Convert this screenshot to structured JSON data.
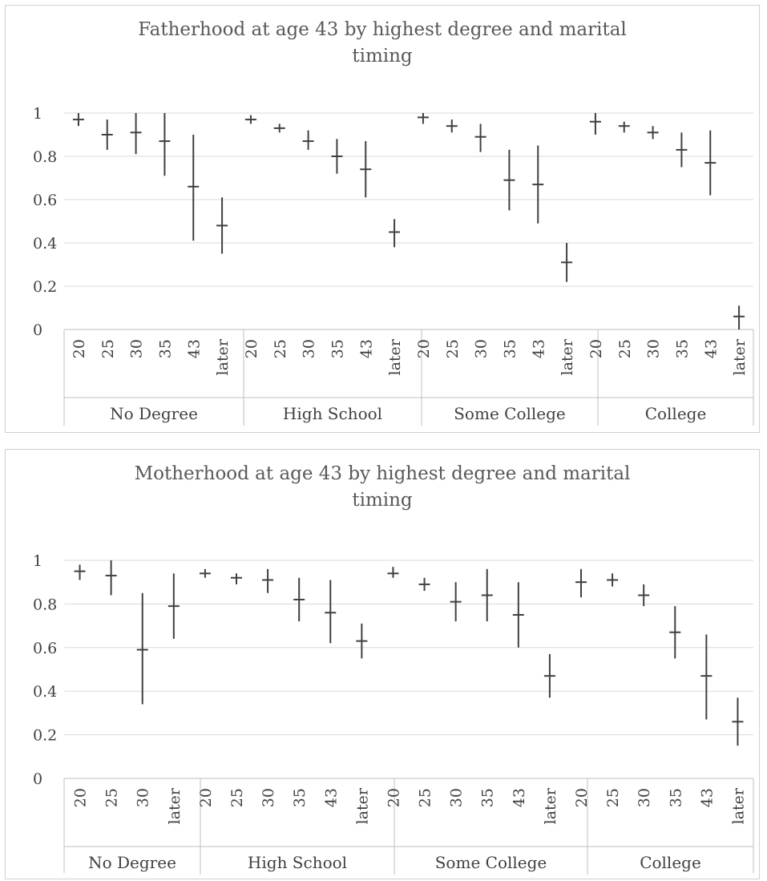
{
  "chart_data": [
    {
      "type": "error-bar",
      "title": "Fatherhood at age 43 by highest degree and marital timing",
      "xlabel": "",
      "ylabel": "",
      "ylim": [
        0,
        1
      ],
      "yticks": [
        "0",
        "0.2",
        "0.4",
        "0.6",
        "0.8",
        "1"
      ],
      "grid": "horizontal",
      "legend": "none",
      "colors": {
        "mark": "#404040",
        "grid": "#d9d9d9",
        "axis": "#bfbfbf",
        "title": "#595959",
        "label": "#404040"
      },
      "groups": [
        {
          "name": "No Degree",
          "points": [
            {
              "x": "20",
              "y": 0.97,
              "low": 0.94,
              "high": 1.0
            },
            {
              "x": "25",
              "y": 0.9,
              "low": 0.83,
              "high": 0.97
            },
            {
              "x": "30",
              "y": 0.91,
              "low": 0.81,
              "high": 1.0
            },
            {
              "x": "35",
              "y": 0.87,
              "low": 0.71,
              "high": 1.0
            },
            {
              "x": "43",
              "y": 0.66,
              "low": 0.41,
              "high": 0.9
            },
            {
              "x": "later",
              "y": 0.48,
              "low": 0.35,
              "high": 0.61
            }
          ]
        },
        {
          "name": "High School",
          "points": [
            {
              "x": "20",
              "y": 0.97,
              "low": 0.95,
              "high": 0.99
            },
            {
              "x": "25",
              "y": 0.93,
              "low": 0.91,
              "high": 0.95
            },
            {
              "x": "30",
              "y": 0.87,
              "low": 0.83,
              "high": 0.92
            },
            {
              "x": "35",
              "y": 0.8,
              "low": 0.72,
              "high": 0.88
            },
            {
              "x": "43",
              "y": 0.74,
              "low": 0.61,
              "high": 0.87
            },
            {
              "x": "later",
              "y": 0.45,
              "low": 0.38,
              "high": 0.51
            }
          ]
        },
        {
          "name": "Some College",
          "points": [
            {
              "x": "20",
              "y": 0.98,
              "low": 0.95,
              "high": 1.0
            },
            {
              "x": "25",
              "y": 0.94,
              "low": 0.91,
              "high": 0.97
            },
            {
              "x": "30",
              "y": 0.89,
              "low": 0.82,
              "high": 0.95
            },
            {
              "x": "35",
              "y": 0.69,
              "low": 0.55,
              "high": 0.83
            },
            {
              "x": "43",
              "y": 0.67,
              "low": 0.49,
              "high": 0.85
            },
            {
              "x": "later",
              "y": 0.31,
              "low": 0.22,
              "high": 0.4
            }
          ]
        },
        {
          "name": "College",
          "points": [
            {
              "x": "20",
              "y": 0.96,
              "low": 0.9,
              "high": 1.0
            },
            {
              "x": "25",
              "y": 0.94,
              "low": 0.91,
              "high": 0.96
            },
            {
              "x": "30",
              "y": 0.91,
              "low": 0.88,
              "high": 0.94
            },
            {
              "x": "35",
              "y": 0.83,
              "low": 0.75,
              "high": 0.91
            },
            {
              "x": "43",
              "y": 0.77,
              "low": 0.62,
              "high": 0.92
            },
            {
              "x": "later",
              "y": 0.06,
              "low": 0.0,
              "high": 0.11
            }
          ]
        }
      ]
    },
    {
      "type": "error-bar",
      "title": "Motherhood at age 43 by highest degree and marital timing",
      "xlabel": "",
      "ylabel": "",
      "ylim": [
        0,
        1
      ],
      "yticks": [
        "0",
        "0.2",
        "0.4",
        "0.6",
        "0.8",
        "1"
      ],
      "grid": "horizontal",
      "legend": "none",
      "colors": {
        "mark": "#404040",
        "grid": "#d9d9d9",
        "axis": "#bfbfbf",
        "title": "#595959",
        "label": "#404040"
      },
      "groups": [
        {
          "name": "No Degree",
          "points": [
            {
              "x": "20",
              "y": 0.95,
              "low": 0.91,
              "high": 0.98
            },
            {
              "x": "25",
              "y": 0.93,
              "low": 0.84,
              "high": 1.0
            },
            {
              "x": "30",
              "y": 0.59,
              "low": 0.34,
              "high": 0.85
            },
            {
              "x": "later",
              "y": 0.79,
              "low": 0.64,
              "high": 0.94
            }
          ]
        },
        {
          "name": "High School",
          "points": [
            {
              "x": "20",
              "y": 0.94,
              "low": 0.92,
              "high": 0.96
            },
            {
              "x": "25",
              "y": 0.92,
              "low": 0.89,
              "high": 0.94
            },
            {
              "x": "30",
              "y": 0.91,
              "low": 0.85,
              "high": 0.96
            },
            {
              "x": "35",
              "y": 0.82,
              "low": 0.72,
              "high": 0.92
            },
            {
              "x": "43",
              "y": 0.76,
              "low": 0.62,
              "high": 0.91
            },
            {
              "x": "later",
              "y": 0.63,
              "low": 0.55,
              "high": 0.71
            }
          ]
        },
        {
          "name": "Some College",
          "points": [
            {
              "x": "20",
              "y": 0.94,
              "low": 0.92,
              "high": 0.97
            },
            {
              "x": "25",
              "y": 0.89,
              "low": 0.86,
              "high": 0.92
            },
            {
              "x": "30",
              "y": 0.81,
              "low": 0.72,
              "high": 0.9
            },
            {
              "x": "35",
              "y": 0.84,
              "low": 0.72,
              "high": 0.96
            },
            {
              "x": "43",
              "y": 0.75,
              "low": 0.6,
              "high": 0.9
            },
            {
              "x": "later",
              "y": 0.47,
              "low": 0.37,
              "high": 0.57
            }
          ]
        },
        {
          "name": "College",
          "points": [
            {
              "x": "20",
              "y": 0.9,
              "low": 0.83,
              "high": 0.96
            },
            {
              "x": "25",
              "y": 0.91,
              "low": 0.88,
              "high": 0.94
            },
            {
              "x": "30",
              "y": 0.84,
              "low": 0.79,
              "high": 0.89
            },
            {
              "x": "35",
              "y": 0.67,
              "low": 0.55,
              "high": 0.79
            },
            {
              "x": "43",
              "y": 0.47,
              "low": 0.27,
              "high": 0.66
            },
            {
              "x": "later",
              "y": 0.26,
              "low": 0.15,
              "high": 0.37
            }
          ]
        }
      ]
    }
  ]
}
